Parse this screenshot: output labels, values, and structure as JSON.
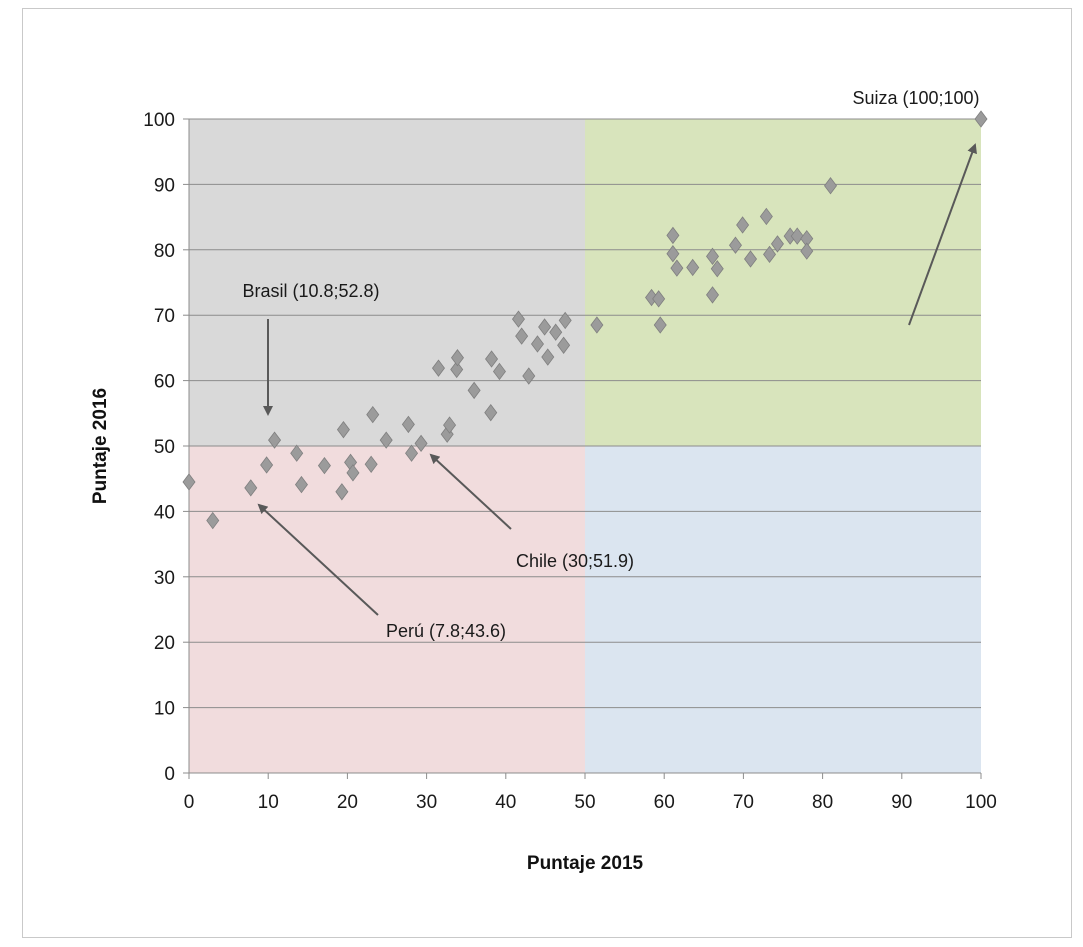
{
  "chart_data": {
    "type": "scatter",
    "title": "",
    "xlabel": "Puntaje 2015",
    "ylabel": "Puntaje 2016",
    "xlim": [
      0,
      100
    ],
    "ylim": [
      0,
      100
    ],
    "xticks": [
      "0",
      "10",
      "20",
      "30",
      "40",
      "50",
      "60",
      "70",
      "80",
      "90",
      "100"
    ],
    "yticks": [
      "0",
      "10",
      "20",
      "30",
      "40",
      "50",
      "60",
      "70",
      "80",
      "90",
      "100"
    ],
    "grid": "horizontal",
    "marker": "diamond",
    "marker_color": "#9b9b9b",
    "quadrants": [
      {
        "name": "low-low",
        "x": [
          0,
          50
        ],
        "y": [
          0,
          50
        ],
        "color": "#f1dcdd"
      },
      {
        "name": "low-high",
        "x": [
          0,
          50
        ],
        "y": [
          50,
          100
        ],
        "color": "#d9d9d9"
      },
      {
        "name": "high-high",
        "x": [
          50,
          100
        ],
        "y": [
          50,
          100
        ],
        "color": "#d8e4bc"
      },
      {
        "name": "high-low",
        "x": [
          50,
          100
        ],
        "y": [
          0,
          50
        ],
        "color": "#dbe5f0"
      }
    ],
    "points": [
      [
        0,
        44.5
      ],
      [
        3,
        38.6
      ],
      [
        7.8,
        43.6
      ],
      [
        9.8,
        47.1
      ],
      [
        10.8,
        50.9
      ],
      [
        13.6,
        48.9
      ],
      [
        14.2,
        44.1
      ],
      [
        17.1,
        47
      ],
      [
        19.3,
        43
      ],
      [
        19.5,
        52.5
      ],
      [
        20.4,
        47.5
      ],
      [
        20.7,
        45.9
      ],
      [
        23,
        47.2
      ],
      [
        23.2,
        54.8
      ],
      [
        24.9,
        50.9
      ],
      [
        27.7,
        53.3
      ],
      [
        28.1,
        48.9
      ],
      [
        29.3,
        50.4
      ],
      [
        31.5,
        61.9
      ],
      [
        32.6,
        51.8
      ],
      [
        32.9,
        53.2
      ],
      [
        33.8,
        61.7
      ],
      [
        33.9,
        63.5
      ],
      [
        36,
        58.5
      ],
      [
        38.1,
        55.1
      ],
      [
        38.2,
        63.3
      ],
      [
        39.2,
        61.4
      ],
      [
        41.6,
        69.4
      ],
      [
        42,
        66.8
      ],
      [
        42.9,
        60.7
      ],
      [
        44,
        65.6
      ],
      [
        44.9,
        68.2
      ],
      [
        45.3,
        63.6
      ],
      [
        46.3,
        67.4
      ],
      [
        47.3,
        65.4
      ],
      [
        47.5,
        69.2
      ],
      [
        51.5,
        68.5
      ],
      [
        58.4,
        72.7
      ],
      [
        59.3,
        72.5
      ],
      [
        59.5,
        68.5
      ],
      [
        61.1,
        82.2
      ],
      [
        61.1,
        79.4
      ],
      [
        61.6,
        77.2
      ],
      [
        63.6,
        77.3
      ],
      [
        66.1,
        79
      ],
      [
        66.1,
        73.1
      ],
      [
        66.7,
        77.1
      ],
      [
        69,
        80.7
      ],
      [
        69.9,
        83.8
      ],
      [
        70.9,
        78.6
      ],
      [
        72.9,
        85.1
      ],
      [
        73.3,
        79.3
      ],
      [
        74.3,
        80.9
      ],
      [
        75.9,
        82.1
      ],
      [
        76.8,
        82.1
      ],
      [
        78,
        81.7
      ],
      [
        78,
        79.8
      ],
      [
        81,
        89.8
      ],
      [
        100,
        100
      ]
    ],
    "annotations": [
      {
        "label": "Suiza (100;100)",
        "point": [
          100,
          100
        ]
      },
      {
        "label": "Brasil (10.8;52.8)",
        "point": [
          10.8,
          52.8
        ]
      },
      {
        "label": "Chile (30;51.9)",
        "point": [
          30,
          51.9
        ]
      },
      {
        "label": "Perú (7.8;43.6)",
        "point": [
          7.8,
          43.6
        ]
      }
    ],
    "arrow_color": "#595959"
  }
}
